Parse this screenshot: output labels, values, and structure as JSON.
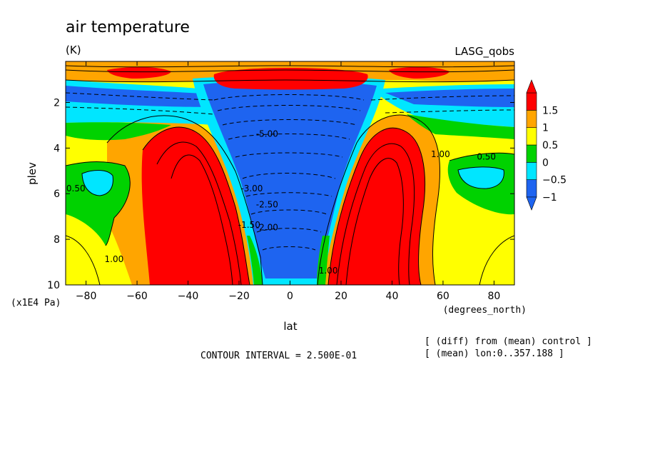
{
  "chart_data": {
    "type": "heatmap",
    "title": "air temperature",
    "units": "(K)",
    "dataset": "LASG_qobs",
    "xlabel": "lat",
    "x_units": "(degrees_north)",
    "ylabel": "plev",
    "y_units": "(x1E4 Pa)",
    "xlim": [
      -88,
      88
    ],
    "ylim": [
      0.2,
      10
    ],
    "y_inverted": true,
    "x_ticks": [
      -80,
      -60,
      -40,
      -20,
      0,
      20,
      40,
      60,
      80
    ],
    "y_ticks": [
      2,
      4,
      6,
      8,
      10
    ],
    "contour_interval_text": "CONTOUR INTERVAL = 2.500E-01",
    "notes": [
      "[ (diff) from (mean) control ]",
      "[ (mean) lon:0..357.188 ]"
    ],
    "colorbar": {
      "bins": [
        {
          "color": "#1e64f0",
          "label": "-1"
        },
        {
          "color": "#00e6ff",
          "label": "-0.5"
        },
        {
          "color": "#00d200",
          "label": "0"
        },
        {
          "color": "#ffff00",
          "label": "0.5"
        },
        {
          "color": "#ffa500",
          "label": "1"
        },
        {
          "color": "#ff0000",
          "label": "1.5"
        }
      ],
      "labels": [
        "1.5",
        "1",
        "0.5",
        "0",
        "-0.5",
        "-1"
      ]
    },
    "contour_labels": [
      {
        "text": "0.50",
        "lat": -84,
        "plev": 5.9
      },
      {
        "text": "1.00",
        "lat": -69,
        "plev": 9.0
      },
      {
        "text": "0.50",
        "lat": 77,
        "plev": 4.5
      },
      {
        "text": "1.00",
        "lat": 59,
        "plev": 4.4
      },
      {
        "text": "-3.00",
        "lat": -15,
        "plev": 5.9
      },
      {
        "text": "-2.50",
        "lat": -9,
        "plev": 6.6
      },
      {
        "text": "-2.00",
        "lat": -9,
        "plev": 7.6
      },
      {
        "text": "-1.50",
        "lat": -16,
        "plev": 7.5
      },
      {
        "text": "-5.00",
        "lat": -9,
        "plev": 3.5
      },
      {
        "text": "1.00",
        "lat": 15,
        "plev": 9.5
      }
    ]
  }
}
